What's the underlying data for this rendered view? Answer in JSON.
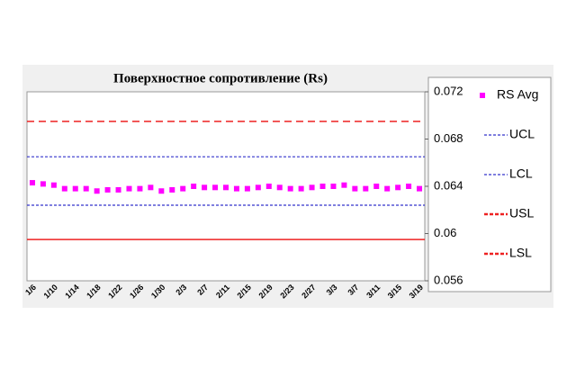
{
  "chart_data": {
    "type": "scatter",
    "title": "Поверхностное сопротивление (Rs)",
    "categories": [
      "1/6",
      null,
      "1/10",
      null,
      "1/14",
      null,
      "1/18",
      null,
      "1/22",
      null,
      "1/26",
      null,
      "1/30",
      null,
      "2/3",
      null,
      "2/7",
      null,
      "2/11",
      null,
      "2/15",
      null,
      "2/19",
      null,
      "2/23",
      null,
      "2/27",
      null,
      "3/3",
      null,
      "3/7",
      null,
      "3/11",
      null,
      "3/15",
      null,
      "3/19"
    ],
    "series": [
      {
        "name": "RS Avg",
        "color": "#ff00ff",
        "values": [
          0.0643,
          0.0642,
          0.0641,
          0.0638,
          0.0638,
          0.0638,
          0.0636,
          0.0637,
          0.0637,
          0.0638,
          0.0638,
          0.0639,
          0.0636,
          0.0637,
          0.0638,
          0.064,
          0.0639,
          0.0639,
          0.0639,
          0.0638,
          0.0638,
          0.0639,
          0.064,
          0.0639,
          0.0638,
          0.0638,
          0.0639,
          0.064,
          0.064,
          0.0641,
          0.0638,
          0.0638,
          0.064,
          0.0638,
          0.0639,
          0.064,
          0.0638
        ]
      }
    ],
    "limits": [
      {
        "name": "UCL",
        "color": "#3333cc",
        "value": 0.0665,
        "style": "dashed"
      },
      {
        "name": "LCL",
        "color": "#3333cc",
        "value": 0.0624,
        "style": "dashed"
      },
      {
        "name": "USL",
        "color": "#ee2222",
        "value": 0.0695,
        "style": "dashed"
      },
      {
        "name": "LSL",
        "color": "#ee2222",
        "value": 0.0595,
        "style": "solid"
      }
    ],
    "ylim": [
      0.056,
      0.072
    ],
    "yticks": [
      0.056,
      0.06,
      0.064,
      0.068,
      0.072
    ],
    "legend": "right"
  }
}
